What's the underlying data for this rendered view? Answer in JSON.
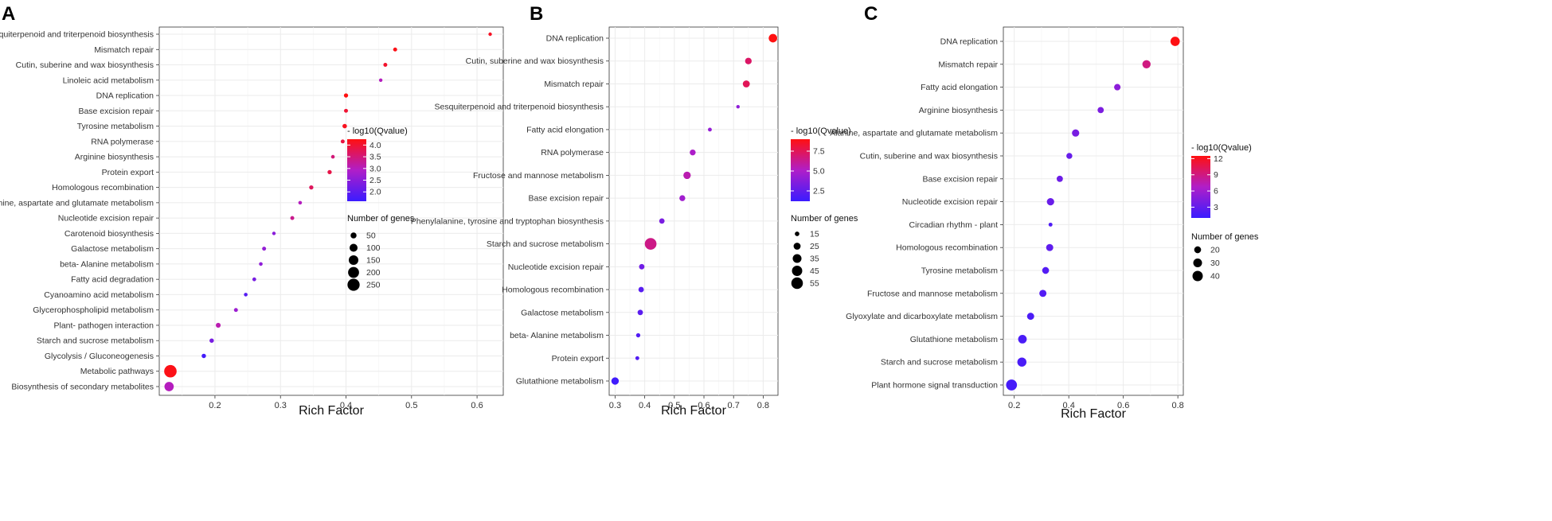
{
  "chart_data": [
    {
      "type": "scatter",
      "panel_label": "A",
      "xlabel": "Rich Factor",
      "xlim": [
        0.115,
        0.64
      ],
      "xticks": [
        0.2,
        0.3,
        0.4,
        0.5,
        0.6
      ],
      "xtick_labels": [
        "0.2",
        "0.3",
        "0.4",
        "0.5",
        "0.6"
      ],
      "color_legend": {
        "title": "- log10(Qvalue)",
        "range": [
          1.6,
          4.25
        ],
        "ticks": [
          2.0,
          2.5,
          3.0,
          3.5,
          4.0
        ],
        "tick_labels": [
          "2.0",
          "2.5",
          "3.0",
          "3.5",
          "4.0"
        ]
      },
      "size_legend": {
        "title": "Number of genes",
        "range": [
          8,
          275
        ],
        "values": [
          50,
          100,
          150,
          200,
          250
        ],
        "labels": [
          "50",
          "100",
          "150",
          "200",
          "250"
        ]
      },
      "points": [
        {
          "pathway": "Sesquiterpenoid and triterpenoid biosynthesis",
          "rich_factor": 0.62,
          "qvalue": 4.1,
          "genes": 8
        },
        {
          "pathway": "Mismatch repair",
          "rich_factor": 0.475,
          "qvalue": 4.2,
          "genes": 14
        },
        {
          "pathway": "Cutin, suberine and wax biosynthesis",
          "rich_factor": 0.46,
          "qvalue": 4.05,
          "genes": 14
        },
        {
          "pathway": "Linoleic acid metabolism",
          "rich_factor": 0.453,
          "qvalue": 3.0,
          "genes": 5
        },
        {
          "pathway": "DNA replication",
          "rich_factor": 0.4,
          "qvalue": 4.25,
          "genes": 18
        },
        {
          "pathway": "Base excision repair",
          "rich_factor": 0.4,
          "qvalue": 4.0,
          "genes": 14
        },
        {
          "pathway": "Tyrosine metabolism",
          "rich_factor": 0.398,
          "qvalue": 4.15,
          "genes": 22
        },
        {
          "pathway": "RNA polymerase",
          "rich_factor": 0.395,
          "qvalue": 3.9,
          "genes": 14
        },
        {
          "pathway": "Arginine biosynthesis",
          "rich_factor": 0.38,
          "qvalue": 3.5,
          "genes": 10
        },
        {
          "pathway": "Protein export",
          "rich_factor": 0.375,
          "qvalue": 3.85,
          "genes": 18
        },
        {
          "pathway": "Homologous recombination",
          "rich_factor": 0.347,
          "qvalue": 3.7,
          "genes": 18
        },
        {
          "pathway": "Alanine, aspartate and glutamate metabolism",
          "rich_factor": 0.33,
          "qvalue": 3.0,
          "genes": 10
        },
        {
          "pathway": "Nucleotide excision repair",
          "rich_factor": 0.318,
          "qvalue": 3.35,
          "genes": 14
        },
        {
          "pathway": "Carotenoid biosynthesis",
          "rich_factor": 0.29,
          "qvalue": 2.5,
          "genes": 8
        },
        {
          "pathway": "Galactose metabolism",
          "rich_factor": 0.275,
          "qvalue": 2.6,
          "genes": 14
        },
        {
          "pathway": "beta- Alanine metabolism",
          "rich_factor": 0.27,
          "qvalue": 2.55,
          "genes": 10
        },
        {
          "pathway": "Fatty acid degradation",
          "rich_factor": 0.26,
          "qvalue": 2.3,
          "genes": 12
        },
        {
          "pathway": "Cyanoamino acid metabolism",
          "rich_factor": 0.247,
          "qvalue": 1.9,
          "genes": 10
        },
        {
          "pathway": "Glycerophospholipid metabolism",
          "rich_factor": 0.232,
          "qvalue": 2.7,
          "genes": 14
        },
        {
          "pathway": "Plant- pathogen interaction",
          "rich_factor": 0.205,
          "qvalue": 3.1,
          "genes": 28
        },
        {
          "pathway": "Starch and sucrose metabolism",
          "rich_factor": 0.195,
          "qvalue": 2.3,
          "genes": 20
        },
        {
          "pathway": "Glycolysis / Gluconeogenesis",
          "rich_factor": 0.183,
          "qvalue": 1.7,
          "genes": 20
        },
        {
          "pathway": "Metabolic pathways",
          "rich_factor": 0.132,
          "qvalue": 4.2,
          "genes": 262
        },
        {
          "pathway": "Biosynthesis of secondary metabolites",
          "rich_factor": 0.13,
          "qvalue": 3.0,
          "genes": 140
        }
      ]
    },
    {
      "type": "scatter",
      "panel_label": "B",
      "xlabel": "Rich Factor",
      "xlim": [
        0.28,
        0.85
      ],
      "xticks": [
        0.3,
        0.4,
        0.5,
        0.6,
        0.7,
        0.8
      ],
      "xtick_labels": [
        "0.3",
        "0.4",
        "0.5",
        "0.6",
        "0.7",
        "0.8"
      ],
      "color_legend": {
        "title": "- log10(Qvalue)",
        "range": [
          1.2,
          9.0
        ],
        "ticks": [
          2.5,
          5.0,
          7.5
        ],
        "tick_labels": [
          "2.5",
          "5.0",
          "7.5"
        ]
      },
      "size_legend": {
        "title": "Number of genes",
        "range": [
          12,
          58
        ],
        "values": [
          15,
          25,
          35,
          45,
          55
        ],
        "labels": [
          "15",
          "25",
          "35",
          "45",
          "55"
        ]
      },
      "points": [
        {
          "pathway": "DNA replication",
          "rich_factor": 0.833,
          "qvalue": 9.0,
          "genes": 33
        },
        {
          "pathway": "Cutin, suberine and wax biosynthesis",
          "rich_factor": 0.75,
          "qvalue": 7.2,
          "genes": 23
        },
        {
          "pathway": "Mismatch repair",
          "rich_factor": 0.743,
          "qvalue": 7.5,
          "genes": 25
        },
        {
          "pathway": "Sesquiterpenoid and triterpenoid biosynthesis",
          "rich_factor": 0.715,
          "qvalue": 4.0,
          "genes": 10
        },
        {
          "pathway": "Fatty acid elongation",
          "rich_factor": 0.62,
          "qvalue": 4.2,
          "genes": 13
        },
        {
          "pathway": "RNA polymerase",
          "rich_factor": 0.562,
          "qvalue": 5.0,
          "genes": 20
        },
        {
          "pathway": "Fructose and mannose metabolism",
          "rich_factor": 0.543,
          "qvalue": 5.6,
          "genes": 27
        },
        {
          "pathway": "Base excision repair",
          "rich_factor": 0.527,
          "qvalue": 4.6,
          "genes": 20
        },
        {
          "pathway": "Phenylalanine, tyrosine and tryptophan biosynthesis",
          "rich_factor": 0.458,
          "qvalue": 3.3,
          "genes": 18
        },
        {
          "pathway": "Starch and sucrose metabolism",
          "rich_factor": 0.42,
          "qvalue": 6.5,
          "genes": 56
        },
        {
          "pathway": "Nucleotide excision repair",
          "rich_factor": 0.39,
          "qvalue": 3.0,
          "genes": 18
        },
        {
          "pathway": "Homologous recombination",
          "rich_factor": 0.388,
          "qvalue": 2.2,
          "genes": 18
        },
        {
          "pathway": "Galactose metabolism",
          "rich_factor": 0.385,
          "qvalue": 2.3,
          "genes": 18
        },
        {
          "pathway": "beta- Alanine metabolism",
          "rich_factor": 0.378,
          "qvalue": 2.0,
          "genes": 14
        },
        {
          "pathway": "Protein export",
          "rich_factor": 0.375,
          "qvalue": 2.0,
          "genes": 13
        },
        {
          "pathway": "Glutathione metabolism",
          "rich_factor": 0.3,
          "qvalue": 1.4,
          "genes": 27
        }
      ]
    },
    {
      "type": "scatter",
      "panel_label": "C",
      "xlabel": "Rich Factor",
      "xlim": [
        0.16,
        0.82
      ],
      "xticks": [
        0.2,
        0.4,
        0.6,
        0.8
      ],
      "xtick_labels": [
        "0.2",
        "0.4",
        "0.6",
        "0.8"
      ],
      "color_legend": {
        "title": "- log10(Qvalue)",
        "range": [
          1.0,
          12.5
        ],
        "ticks": [
          3,
          6,
          9,
          12
        ],
        "tick_labels": [
          "3",
          "6",
          "9",
          "12"
        ]
      },
      "size_legend": {
        "title": "Number of genes",
        "range": [
          8,
          46
        ],
        "values": [
          20,
          30,
          40
        ],
        "labels": [
          "20",
          "30",
          "40"
        ]
      },
      "points": [
        {
          "pathway": "DNA replication",
          "rich_factor": 0.79,
          "qvalue": 12.4,
          "genes": 33
        },
        {
          "pathway": "Mismatch repair",
          "rich_factor": 0.685,
          "qvalue": 9.0,
          "genes": 27
        },
        {
          "pathway": "Fatty acid elongation",
          "rich_factor": 0.578,
          "qvalue": 5.0,
          "genes": 18
        },
        {
          "pathway": "Arginine biosynthesis",
          "rich_factor": 0.517,
          "qvalue": 4.2,
          "genes": 17
        },
        {
          "pathway": "Alanine, aspartate and glutamate metabolism",
          "rich_factor": 0.425,
          "qvalue": 4.0,
          "genes": 22
        },
        {
          "pathway": "Cutin, suberine and wax biosynthesis",
          "rich_factor": 0.402,
          "qvalue": 3.2,
          "genes": 16
        },
        {
          "pathway": "Base excision repair",
          "rich_factor": 0.367,
          "qvalue": 3.5,
          "genes": 17
        },
        {
          "pathway": "Nucleotide excision repair",
          "rich_factor": 0.333,
          "qvalue": 3.3,
          "genes": 22
        },
        {
          "pathway": "Circadian rhythm - plant",
          "rich_factor": 0.333,
          "qvalue": 2.0,
          "genes": 9
        },
        {
          "pathway": "Homologous recombination",
          "rich_factor": 0.33,
          "qvalue": 2.8,
          "genes": 21
        },
        {
          "pathway": "Tyrosine metabolism",
          "rich_factor": 0.315,
          "qvalue": 2.2,
          "genes": 20
        },
        {
          "pathway": "Fructose and mannose metabolism",
          "rich_factor": 0.305,
          "qvalue": 2.2,
          "genes": 21
        },
        {
          "pathway": "Glyoxylate and dicarboxylate metabolism",
          "rich_factor": 0.26,
          "qvalue": 1.9,
          "genes": 21
        },
        {
          "pathway": "Glutathione metabolism",
          "rich_factor": 0.23,
          "qvalue": 1.8,
          "genes": 29
        },
        {
          "pathway": "Starch and sucrose metabolism",
          "rich_factor": 0.228,
          "qvalue": 1.8,
          "genes": 32
        },
        {
          "pathway": "Plant hormone signal transduction",
          "rich_factor": 0.19,
          "qvalue": 1.6,
          "genes": 44
        }
      ]
    }
  ]
}
